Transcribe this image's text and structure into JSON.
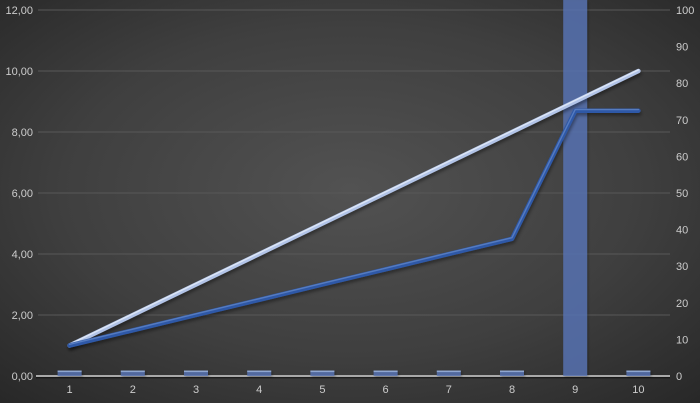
{
  "chart_data": {
    "type": "combo",
    "title": "",
    "legend": "none",
    "categories": [
      "1",
      "2",
      "3",
      "4",
      "5",
      "6",
      "7",
      "8",
      "9",
      "10"
    ],
    "series": [
      {
        "name": "bar-series",
        "type": "bar",
        "axis": "right",
        "values": [
          1.5,
          1.5,
          1.5,
          1.5,
          1.5,
          1.5,
          1.5,
          1.5,
          105,
          1.5
        ],
        "note": "bar at category 9 exceeds the axis maximum and is clipped at the top of the chart"
      },
      {
        "name": "straight-line-series",
        "type": "line",
        "axis": "left",
        "values": [
          1,
          2,
          3,
          4,
          5,
          6,
          7,
          8,
          9,
          10
        ]
      },
      {
        "name": "kinked-line-series",
        "type": "line",
        "axis": "left",
        "values": [
          1,
          1.5,
          2,
          2.5,
          3,
          3.5,
          4,
          4.5,
          8.7,
          8.7
        ]
      }
    ],
    "left_axis": {
      "min": 0,
      "max": 12,
      "step": 2,
      "tick_labels": [
        "0,00",
        "2,00",
        "4,00",
        "6,00",
        "8,00",
        "10,00",
        "12,00"
      ]
    },
    "right_axis": {
      "min": 0,
      "max": 100,
      "step": 10,
      "tick_labels": [
        "0",
        "10",
        "20",
        "30",
        "40",
        "50",
        "60",
        "70",
        "80",
        "90",
        "100"
      ]
    },
    "x_axis": {
      "tick_labels": [
        "1",
        "2",
        "3",
        "4",
        "5",
        "6",
        "7",
        "8",
        "9",
        "10"
      ]
    },
    "grid": "horizontal gridlines at primary (left) axis intervals only"
  },
  "style": {
    "background_center": "#525252",
    "background_mid": "#3f3f3f",
    "background_edge": "#262626",
    "gridline": "#585858",
    "axis_line": "#a9a9a9",
    "axis_line_shadow": "rgba(0,0,0,0.45)",
    "label_color": "#cccccc",
    "bar_fill": "rgba(88,118,184,0.78)",
    "bar_top_highlight": "rgba(170,192,230,0.7)",
    "line_light": "#b2c4e8",
    "line_light_sheen": "#e4ecf8",
    "line_dark": "#2f58a7",
    "line_dark_sheen": "#5d82c4"
  }
}
